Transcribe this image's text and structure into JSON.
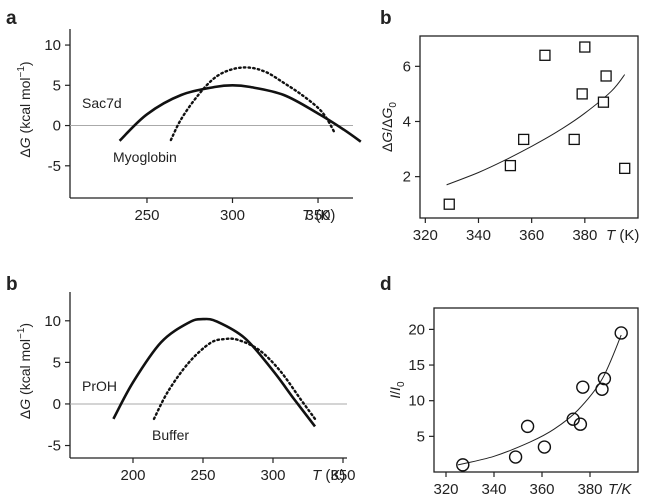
{
  "chart_data": [
    {
      "panel": "a",
      "type": "line",
      "xlabel": "T (K)",
      "ylabel": "ΔG (kcal mol⁻¹)",
      "xlim": [
        205,
        395
      ],
      "ylim": [
        -9,
        11
      ],
      "xticks": [
        250,
        300,
        350
      ],
      "yticks": [
        -5,
        0,
        5,
        10
      ],
      "zero_line": true,
      "series": [
        {
          "name": "Sac7d",
          "style": "solid",
          "x": [
            234,
            250,
            270,
            290,
            300,
            310,
            330,
            350,
            365,
            375
          ],
          "y": [
            -1.9,
            1.4,
            3.8,
            4.8,
            5.0,
            4.8,
            3.8,
            1.5,
            -0.5,
            -2.0
          ]
        },
        {
          "name": "Myoglobin",
          "style": "dotted",
          "x": [
            264,
            270,
            280,
            290,
            300,
            310,
            320,
            330,
            340,
            350,
            355,
            360
          ],
          "y": [
            -1.8,
            0.8,
            3.8,
            6.0,
            7.0,
            7.2,
            6.6,
            5.3,
            3.9,
            2.2,
            0.9,
            -1.0
          ]
        }
      ]
    },
    {
      "panel": "b",
      "type": "scatter",
      "xlabel": "T (K)",
      "ylabel": "ΔG/ΔG₀",
      "xlim": [
        318,
        400
      ],
      "ylim": [
        0.5,
        7.1
      ],
      "xticks": [
        320,
        340,
        360,
        380
      ],
      "yticks": [
        2,
        4,
        6
      ],
      "points": [
        [
          329,
          1.0
        ],
        [
          352,
          2.4
        ],
        [
          357,
          3.35
        ],
        [
          365,
          6.4
        ],
        [
          376,
          3.35
        ],
        [
          379,
          5.0
        ],
        [
          380,
          6.7
        ],
        [
          387,
          4.7
        ],
        [
          388,
          5.65
        ],
        [
          395,
          2.3
        ]
      ],
      "fit": {
        "x": [
          328,
          340,
          350,
          360,
          370,
          380,
          390,
          395
        ],
        "y": [
          1.7,
          2.15,
          2.6,
          3.1,
          3.65,
          4.3,
          5.1,
          5.7
        ]
      }
    },
    {
      "panel": "b",
      "type": "line",
      "xlabel": "T (K)",
      "ylabel": "ΔG (kcal mol⁻¹)",
      "xlim": [
        155,
        380
      ],
      "ylim": [
        -6.5,
        12.5
      ],
      "xticks": [
        200,
        250,
        300,
        350
      ],
      "yticks": [
        -5,
        0,
        5,
        10
      ],
      "zero_line": true,
      "series": [
        {
          "name": "PrOH",
          "style": "solid",
          "x": [
            186,
            200,
            220,
            240,
            250,
            260,
            280,
            300,
            315,
            330
          ],
          "y": [
            -1.8,
            2.6,
            7.4,
            9.8,
            10.2,
            9.9,
            7.9,
            4.0,
            0.6,
            -2.7
          ]
        },
        {
          "name": "Buffer",
          "style": "dotted",
          "x": [
            215,
            225,
            240,
            255,
            265,
            275,
            290,
            305,
            320,
            330
          ],
          "y": [
            -1.8,
            1.5,
            5.0,
            7.3,
            7.8,
            7.7,
            6.5,
            4.0,
            0.5,
            -1.8
          ]
        }
      ]
    },
    {
      "panel": "d",
      "type": "scatter",
      "xlabel": "T/K",
      "ylabel": "I/I₀",
      "xlim": [
        315,
        400
      ],
      "ylim": [
        0,
        23
      ],
      "xticks": [
        320,
        340,
        360,
        380
      ],
      "yticks": [
        5,
        10,
        15,
        20
      ],
      "points": [
        [
          327,
          1.0
        ],
        [
          349,
          2.1
        ],
        [
          354,
          6.4
        ],
        [
          361,
          3.5
        ],
        [
          373,
          7.4
        ],
        [
          376,
          6.7
        ],
        [
          377,
          11.9
        ],
        [
          385,
          11.6
        ],
        [
          386,
          13.1
        ],
        [
          393,
          19.5
        ]
      ],
      "fit": {
        "x": [
          325,
          340,
          355,
          365,
          375,
          385,
          393
        ],
        "y": [
          1.0,
          2.2,
          4.2,
          6.0,
          8.7,
          13.0,
          19.2
        ]
      }
    }
  ],
  "labels": {
    "panel_a": "a",
    "panel_b_top": "b",
    "panel_b_bottom": "b",
    "panel_d": "d",
    "sac7d": "Sac7d",
    "myoglobin": "Myoglobin",
    "proh": "PrOH",
    "buffer": "Buffer"
  }
}
